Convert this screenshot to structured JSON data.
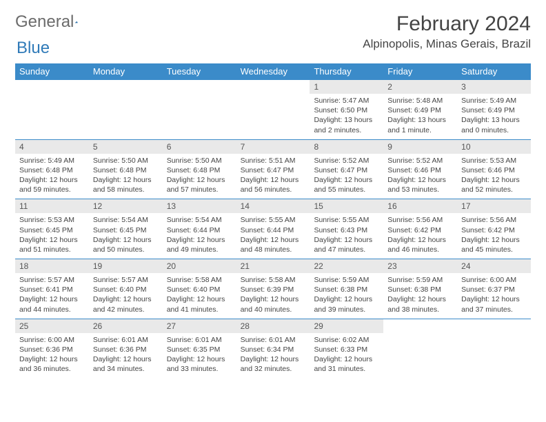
{
  "brand": {
    "word1": "General",
    "word2": "Blue"
  },
  "title": "February 2024",
  "location": "Alpinopolis, Minas Gerais, Brazil",
  "colors": {
    "header_bg": "#3b8bc9",
    "header_text": "#ffffff",
    "daynum_bg": "#e9e9e9",
    "border": "#3b8bc9",
    "body_text": "#444444",
    "brand_gray": "#6b6b6b",
    "brand_blue": "#2f7ab8"
  },
  "weekdays": [
    "Sunday",
    "Monday",
    "Tuesday",
    "Wednesday",
    "Thursday",
    "Friday",
    "Saturday"
  ],
  "weeks": [
    [
      {
        "n": "",
        "sr": "",
        "ss": "",
        "dl": ""
      },
      {
        "n": "",
        "sr": "",
        "ss": "",
        "dl": ""
      },
      {
        "n": "",
        "sr": "",
        "ss": "",
        "dl": ""
      },
      {
        "n": "",
        "sr": "",
        "ss": "",
        "dl": ""
      },
      {
        "n": "1",
        "sr": "Sunrise: 5:47 AM",
        "ss": "Sunset: 6:50 PM",
        "dl": "Daylight: 13 hours and 2 minutes."
      },
      {
        "n": "2",
        "sr": "Sunrise: 5:48 AM",
        "ss": "Sunset: 6:49 PM",
        "dl": "Daylight: 13 hours and 1 minute."
      },
      {
        "n": "3",
        "sr": "Sunrise: 5:49 AM",
        "ss": "Sunset: 6:49 PM",
        "dl": "Daylight: 13 hours and 0 minutes."
      }
    ],
    [
      {
        "n": "4",
        "sr": "Sunrise: 5:49 AM",
        "ss": "Sunset: 6:48 PM",
        "dl": "Daylight: 12 hours and 59 minutes."
      },
      {
        "n": "5",
        "sr": "Sunrise: 5:50 AM",
        "ss": "Sunset: 6:48 PM",
        "dl": "Daylight: 12 hours and 58 minutes."
      },
      {
        "n": "6",
        "sr": "Sunrise: 5:50 AM",
        "ss": "Sunset: 6:48 PM",
        "dl": "Daylight: 12 hours and 57 minutes."
      },
      {
        "n": "7",
        "sr": "Sunrise: 5:51 AM",
        "ss": "Sunset: 6:47 PM",
        "dl": "Daylight: 12 hours and 56 minutes."
      },
      {
        "n": "8",
        "sr": "Sunrise: 5:52 AM",
        "ss": "Sunset: 6:47 PM",
        "dl": "Daylight: 12 hours and 55 minutes."
      },
      {
        "n": "9",
        "sr": "Sunrise: 5:52 AM",
        "ss": "Sunset: 6:46 PM",
        "dl": "Daylight: 12 hours and 53 minutes."
      },
      {
        "n": "10",
        "sr": "Sunrise: 5:53 AM",
        "ss": "Sunset: 6:46 PM",
        "dl": "Daylight: 12 hours and 52 minutes."
      }
    ],
    [
      {
        "n": "11",
        "sr": "Sunrise: 5:53 AM",
        "ss": "Sunset: 6:45 PM",
        "dl": "Daylight: 12 hours and 51 minutes."
      },
      {
        "n": "12",
        "sr": "Sunrise: 5:54 AM",
        "ss": "Sunset: 6:45 PM",
        "dl": "Daylight: 12 hours and 50 minutes."
      },
      {
        "n": "13",
        "sr": "Sunrise: 5:54 AM",
        "ss": "Sunset: 6:44 PM",
        "dl": "Daylight: 12 hours and 49 minutes."
      },
      {
        "n": "14",
        "sr": "Sunrise: 5:55 AM",
        "ss": "Sunset: 6:44 PM",
        "dl": "Daylight: 12 hours and 48 minutes."
      },
      {
        "n": "15",
        "sr": "Sunrise: 5:55 AM",
        "ss": "Sunset: 6:43 PM",
        "dl": "Daylight: 12 hours and 47 minutes."
      },
      {
        "n": "16",
        "sr": "Sunrise: 5:56 AM",
        "ss": "Sunset: 6:42 PM",
        "dl": "Daylight: 12 hours and 46 minutes."
      },
      {
        "n": "17",
        "sr": "Sunrise: 5:56 AM",
        "ss": "Sunset: 6:42 PM",
        "dl": "Daylight: 12 hours and 45 minutes."
      }
    ],
    [
      {
        "n": "18",
        "sr": "Sunrise: 5:57 AM",
        "ss": "Sunset: 6:41 PM",
        "dl": "Daylight: 12 hours and 44 minutes."
      },
      {
        "n": "19",
        "sr": "Sunrise: 5:57 AM",
        "ss": "Sunset: 6:40 PM",
        "dl": "Daylight: 12 hours and 42 minutes."
      },
      {
        "n": "20",
        "sr": "Sunrise: 5:58 AM",
        "ss": "Sunset: 6:40 PM",
        "dl": "Daylight: 12 hours and 41 minutes."
      },
      {
        "n": "21",
        "sr": "Sunrise: 5:58 AM",
        "ss": "Sunset: 6:39 PM",
        "dl": "Daylight: 12 hours and 40 minutes."
      },
      {
        "n": "22",
        "sr": "Sunrise: 5:59 AM",
        "ss": "Sunset: 6:38 PM",
        "dl": "Daylight: 12 hours and 39 minutes."
      },
      {
        "n": "23",
        "sr": "Sunrise: 5:59 AM",
        "ss": "Sunset: 6:38 PM",
        "dl": "Daylight: 12 hours and 38 minutes."
      },
      {
        "n": "24",
        "sr": "Sunrise: 6:00 AM",
        "ss": "Sunset: 6:37 PM",
        "dl": "Daylight: 12 hours and 37 minutes."
      }
    ],
    [
      {
        "n": "25",
        "sr": "Sunrise: 6:00 AM",
        "ss": "Sunset: 6:36 PM",
        "dl": "Daylight: 12 hours and 36 minutes."
      },
      {
        "n": "26",
        "sr": "Sunrise: 6:01 AM",
        "ss": "Sunset: 6:36 PM",
        "dl": "Daylight: 12 hours and 34 minutes."
      },
      {
        "n": "27",
        "sr": "Sunrise: 6:01 AM",
        "ss": "Sunset: 6:35 PM",
        "dl": "Daylight: 12 hours and 33 minutes."
      },
      {
        "n": "28",
        "sr": "Sunrise: 6:01 AM",
        "ss": "Sunset: 6:34 PM",
        "dl": "Daylight: 12 hours and 32 minutes."
      },
      {
        "n": "29",
        "sr": "Sunrise: 6:02 AM",
        "ss": "Sunset: 6:33 PM",
        "dl": "Daylight: 12 hours and 31 minutes."
      },
      {
        "n": "",
        "sr": "",
        "ss": "",
        "dl": ""
      },
      {
        "n": "",
        "sr": "",
        "ss": "",
        "dl": ""
      }
    ]
  ]
}
